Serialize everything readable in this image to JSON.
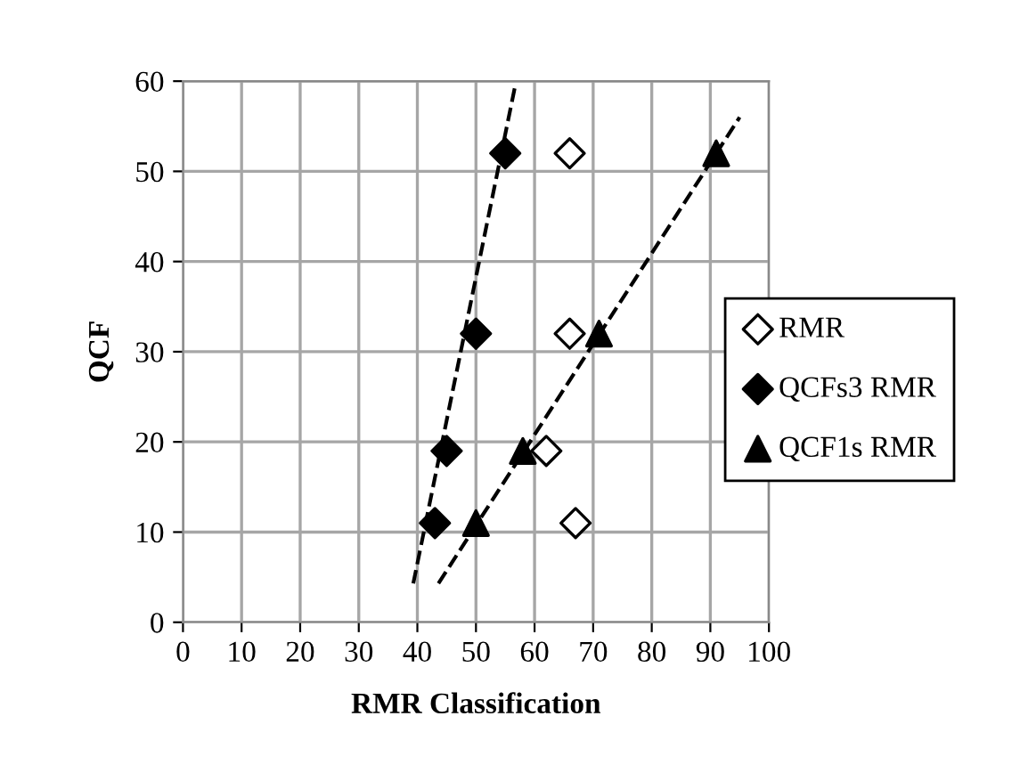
{
  "chart_data": {
    "type": "scatter",
    "xlabel": "RMR Classification",
    "ylabel": "QCF",
    "xlim": [
      0,
      100
    ],
    "ylim": [
      0,
      60
    ],
    "xticks": [
      0,
      10,
      20,
      30,
      40,
      50,
      60,
      70,
      80,
      90,
      100
    ],
    "yticks": [
      0,
      10,
      20,
      30,
      40,
      50,
      60
    ],
    "grid": true,
    "legend": "right",
    "series": [
      {
        "name": "RMR",
        "marker": "diamond",
        "color": "#ffffff",
        "x": [
          66,
          66,
          62,
          67
        ],
        "values": [
          52,
          32,
          19,
          11
        ]
      },
      {
        "name": "QCFs3 RMR",
        "marker": "diamond",
        "color": "#000000",
        "x": [
          55,
          50,
          45,
          43
        ],
        "values": [
          52,
          32,
          19,
          11
        ]
      },
      {
        "name": "QCF1s RMR",
        "marker": "triangle",
        "color": "#000000",
        "x": [
          91,
          71,
          58,
          50
        ],
        "values": [
          52,
          32,
          19,
          11
        ]
      },
      {
        "type": "line",
        "line_style": "dashed",
        "marker": "none",
        "color": "#000000",
        "x": [
          39.3,
          56.6
        ],
        "values": [
          4.3,
          59.2
        ]
      },
      {
        "type": "line",
        "line_style": "dashed",
        "marker": "none",
        "color": "#000000",
        "x": [
          43.6,
          95
        ],
        "values": [
          4.3,
          56
        ]
      }
    ]
  }
}
